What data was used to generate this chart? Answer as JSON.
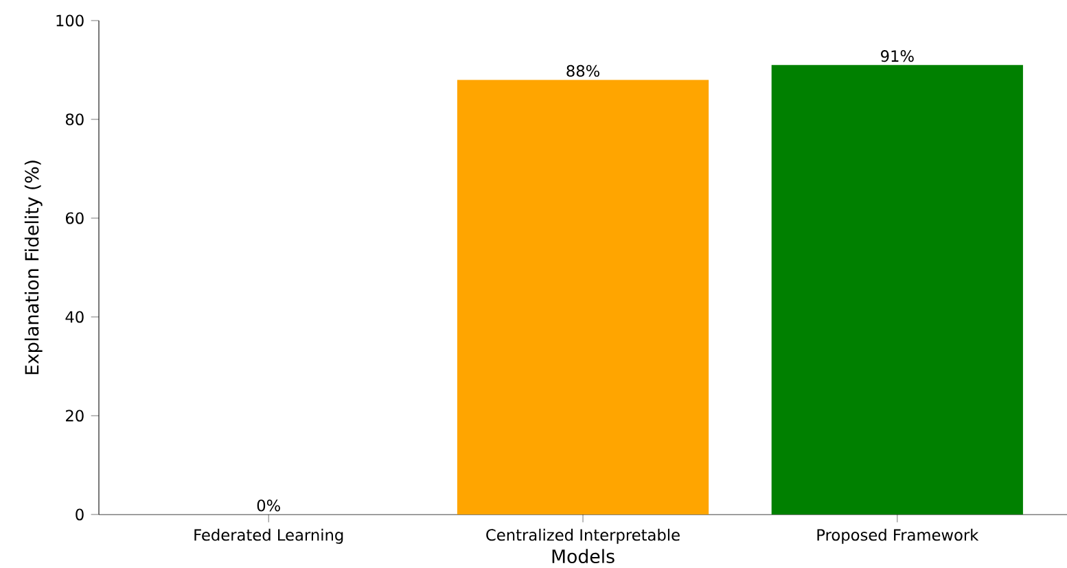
{
  "chart_data": {
    "type": "bar",
    "xlabel": "Models",
    "ylabel": "Explanation Fidelity (%)",
    "categories": [
      "Federated Learning",
      "Centralized Interpretable",
      "Proposed Framework"
    ],
    "values": [
      0,
      88,
      91
    ],
    "colors": [
      "#1f77b4",
      "#ffa500",
      "#008000"
    ],
    "value_labels": [
      "0%",
      "88%",
      "91%"
    ],
    "ylim": [
      0,
      100
    ],
    "yticks": [
      0,
      20,
      40,
      60,
      80,
      100
    ],
    "grid": false
  }
}
